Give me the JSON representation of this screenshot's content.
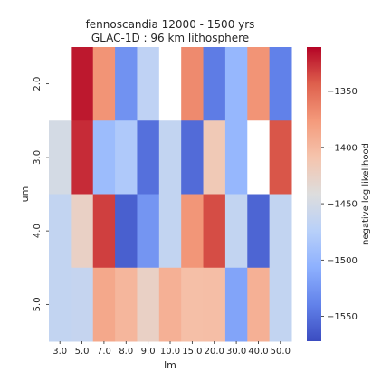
{
  "chart_data": {
    "type": "heatmap",
    "title_lines": [
      "fennoscandia 12000 - 1500 yrs",
      "GLAC-1D : 96 km lithosphere"
    ],
    "xlabel": "lm",
    "ylabel": "um",
    "x_categories": [
      "3.0",
      "5.0",
      "7.0",
      "8.0",
      "9.0",
      "10.0",
      "15.0",
      "20.0",
      "30.0",
      "40.0",
      "50.0"
    ],
    "y_categories": [
      "2.0",
      "3.0",
      "4.0",
      "5.0"
    ],
    "values": [
      [
        null,
        -1318,
        -1373,
        -1528,
        -1468,
        null,
        -1367,
        -1543,
        -1500,
        -1373,
        -1540
      ],
      [
        -1450,
        -1325,
        -1495,
        -1481,
        -1550,
        -1465,
        -1553,
        -1415,
        -1500,
        null,
        -1340
      ],
      [
        -1465,
        -1425,
        -1332,
        -1560,
        -1526,
        -1465,
        -1374,
        -1337,
        -1465,
        -1557,
        -1465
      ],
      [
        -1465,
        -1463,
        -1387,
        -1398,
        -1425,
        -1393,
        -1405,
        -1404,
        -1515,
        -1393,
        -1465
      ]
    ],
    "colorbar": {
      "label": "negative log likelihood",
      "min": -1572,
      "max": -1311,
      "ticks": [
        "−1350",
        "−1400",
        "−1450",
        "−1500",
        "−1550"
      ],
      "tick_values": [
        -1350,
        -1400,
        -1450,
        -1500,
        -1550
      ],
      "colormap": "coolwarm"
    },
    "missing_cell_color": "#ffffff"
  }
}
